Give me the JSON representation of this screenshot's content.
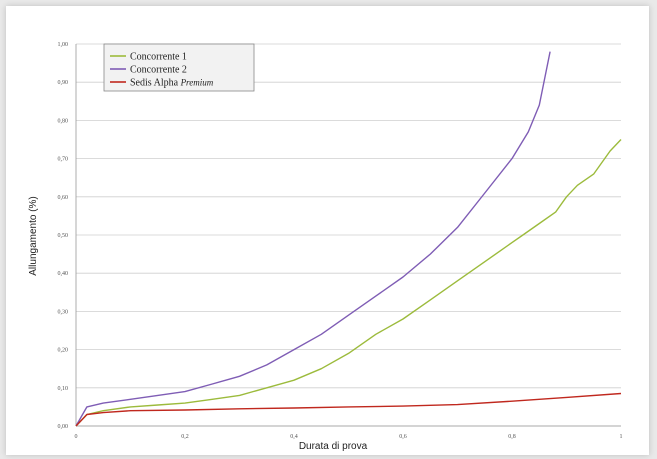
{
  "chart_data": {
    "type": "line",
    "title": "",
    "xlabel": "Durata di prova",
    "ylabel": "Allungamento (%)",
    "xlim": [
      0,
      1
    ],
    "ylim": [
      0,
      1
    ],
    "x_ticks": [
      "0",
      "0,2",
      "0,4",
      "0,6",
      "0,8",
      "1"
    ],
    "y_ticks": [
      "0,00",
      "0,10",
      "0,20",
      "0,30",
      "0,40",
      "0,50",
      "0,60",
      "0,70",
      "0,80",
      "0,90",
      "1,00"
    ],
    "grid": "horizontal",
    "legend_position": "top-left",
    "series": [
      {
        "name": "Concorrente 1",
        "color": "#9cbb3c",
        "x": [
          0,
          0.02,
          0.05,
          0.1,
          0.15,
          0.2,
          0.25,
          0.3,
          0.35,
          0.4,
          0.45,
          0.5,
          0.55,
          0.6,
          0.65,
          0.7,
          0.75,
          0.8,
          0.82,
          0.85,
          0.88,
          0.9,
          0.92,
          0.95,
          0.98,
          1.0
        ],
        "y": [
          0.0,
          0.03,
          0.04,
          0.05,
          0.055,
          0.06,
          0.07,
          0.08,
          0.1,
          0.12,
          0.15,
          0.19,
          0.24,
          0.28,
          0.33,
          0.38,
          0.43,
          0.48,
          0.5,
          0.53,
          0.56,
          0.6,
          0.63,
          0.66,
          0.72,
          0.75
        ]
      },
      {
        "name": "Concorrente 2",
        "color": "#7f5db5",
        "x": [
          0,
          0.02,
          0.05,
          0.1,
          0.15,
          0.2,
          0.25,
          0.3,
          0.35,
          0.4,
          0.45,
          0.5,
          0.55,
          0.6,
          0.65,
          0.7,
          0.75,
          0.8,
          0.83,
          0.85,
          0.87
        ],
        "y": [
          0.0,
          0.05,
          0.06,
          0.07,
          0.08,
          0.09,
          0.11,
          0.13,
          0.16,
          0.2,
          0.24,
          0.29,
          0.34,
          0.39,
          0.45,
          0.52,
          0.61,
          0.7,
          0.77,
          0.84,
          0.98
        ]
      },
      {
        "name": "Sedis Alpha Premium",
        "color": "#c0281e",
        "x": [
          0,
          0.02,
          0.05,
          0.1,
          0.2,
          0.3,
          0.4,
          0.5,
          0.6,
          0.7,
          0.8,
          0.9,
          1.0
        ],
        "y": [
          0.0,
          0.03,
          0.035,
          0.04,
          0.042,
          0.045,
          0.047,
          0.05,
          0.052,
          0.056,
          0.065,
          0.075,
          0.085
        ]
      }
    ],
    "legend": {
      "items": [
        {
          "label": "Concorrente 1",
          "color": "#9cbb3c"
        },
        {
          "label": "Concorrente 2",
          "color": "#7f5db5"
        },
        {
          "label": "Sedis Alpha ",
          "suffix": "Premium",
          "color": "#c0281e"
        }
      ]
    }
  }
}
